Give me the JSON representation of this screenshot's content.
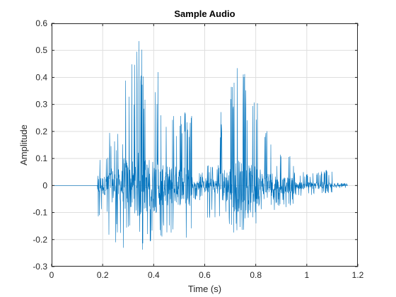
{
  "chart_data": {
    "type": "line",
    "title": "Sample Audio",
    "xlabel": "Time (s)",
    "ylabel": "Amplitude",
    "xlim": [
      0,
      1.2
    ],
    "ylim": [
      -0.3,
      0.6
    ],
    "xticks": [
      0,
      0.2,
      0.4,
      0.6,
      0.8,
      1,
      1.2
    ],
    "xtick_labels": [
      "0",
      "0.2",
      "0.4",
      "0.6",
      "0.8",
      "1",
      "1.2"
    ],
    "yticks": [
      -0.3,
      -0.2,
      -0.1,
      0,
      0.1,
      0.2,
      0.3,
      0.4,
      0.5,
      0.6
    ],
    "ytick_labels": [
      "-0.3",
      "-0.2",
      "-0.1",
      "0",
      "0.1",
      "0.2",
      "0.3",
      "0.4",
      "0.5",
      "0.6"
    ],
    "grid": true,
    "legend": "none",
    "series": [
      {
        "color": "#0072BD",
        "segments": [
          {
            "start": 0.0,
            "end": 0.18,
            "min": 0.0,
            "max": 0.0
          },
          {
            "start": 0.18,
            "end": 0.22,
            "min": -0.12,
            "max": 0.12
          },
          {
            "start": 0.22,
            "end": 0.28,
            "min": -0.22,
            "max": 0.2
          },
          {
            "start": 0.28,
            "end": 0.33,
            "min": -0.24,
            "max": 0.45
          },
          {
            "start": 0.33,
            "end": 0.36,
            "min": -0.27,
            "max": 0.57
          },
          {
            "start": 0.36,
            "end": 0.42,
            "min": -0.22,
            "max": 0.46
          },
          {
            "start": 0.42,
            "end": 0.48,
            "min": -0.2,
            "max": 0.3
          },
          {
            "start": 0.48,
            "end": 0.55,
            "min": -0.22,
            "max": 0.28
          },
          {
            "start": 0.55,
            "end": 0.6,
            "min": -0.06,
            "max": 0.05
          },
          {
            "start": 0.6,
            "end": 0.66,
            "min": -0.12,
            "max": 0.08
          },
          {
            "start": 0.66,
            "end": 0.7,
            "min": -0.15,
            "max": 0.28
          },
          {
            "start": 0.7,
            "end": 0.76,
            "min": -0.2,
            "max": 0.45
          },
          {
            "start": 0.76,
            "end": 0.82,
            "min": -0.15,
            "max": 0.36
          },
          {
            "start": 0.82,
            "end": 0.88,
            "min": -0.1,
            "max": 0.25
          },
          {
            "start": 0.88,
            "end": 0.95,
            "min": -0.08,
            "max": 0.12
          },
          {
            "start": 0.95,
            "end": 1.05,
            "min": -0.04,
            "max": 0.05
          },
          {
            "start": 1.05,
            "end": 1.1,
            "min": -0.03,
            "max": 0.06
          },
          {
            "start": 1.1,
            "end": 1.16,
            "min": -0.01,
            "max": 0.01
          }
        ]
      }
    ]
  }
}
